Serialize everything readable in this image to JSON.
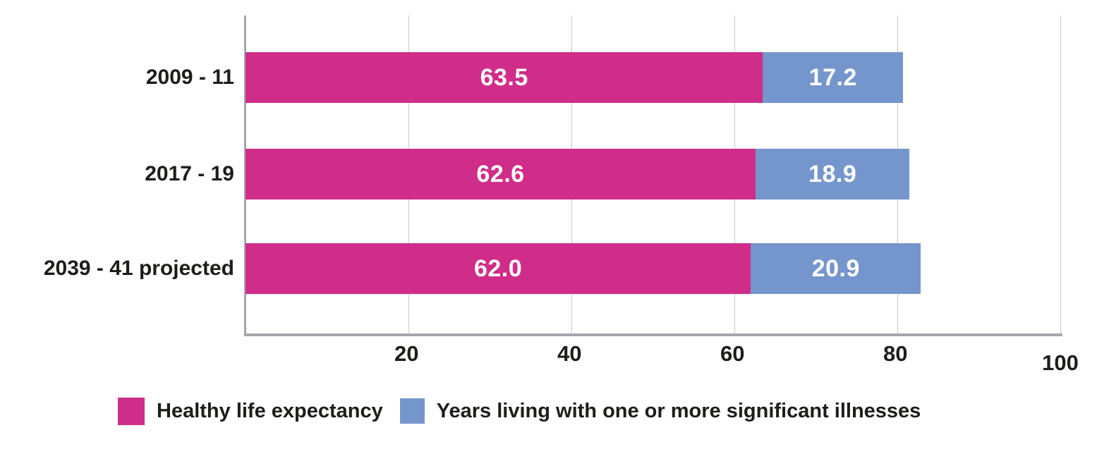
{
  "chart_data": {
    "type": "bar",
    "orientation": "horizontal",
    "stacked": true,
    "title": "",
    "xlabel": "",
    "ylabel": "",
    "categories": [
      "2009 - 11",
      "2017 - 19",
      "2039 - 41 projected"
    ],
    "series": [
      {
        "name": "Healthy life expectancy",
        "color": "#CF2D89",
        "values": [
          63.5,
          62.6,
          62.0
        ]
      },
      {
        "name": "Years living with one or more significant illnesses",
        "color": "#7596CC",
        "values": [
          17.2,
          18.9,
          20.9
        ]
      }
    ],
    "xlim": [
      0,
      100
    ],
    "x_ticks": [
      "20",
      "40",
      "60",
      "80",
      "100"
    ],
    "grid": true,
    "legend_position": "bottom"
  },
  "colors": {
    "bar_healthy": "#CF2D89",
    "bar_illness": "#7596CC",
    "axis_line": "#A4A6AC",
    "gridline": "#C9C9CC",
    "label_text": "#1D1D1B",
    "value_text": "#FFFFFF"
  }
}
